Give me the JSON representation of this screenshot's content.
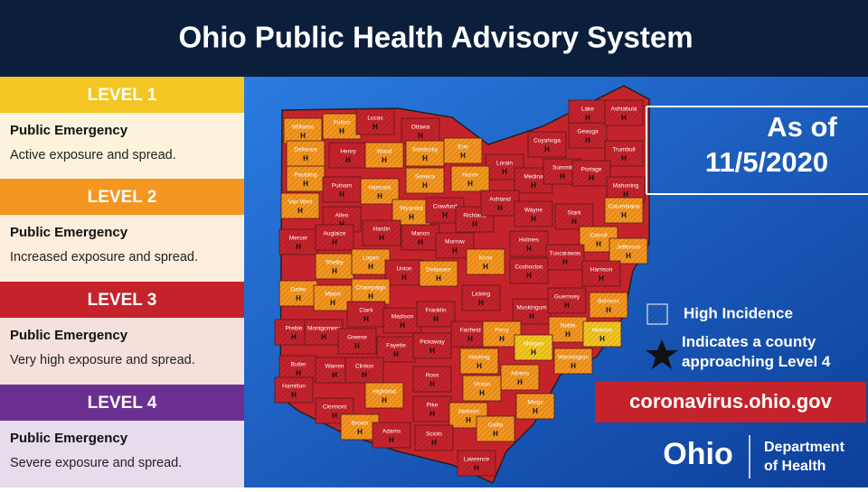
{
  "header": {
    "title": "Ohio Public Health Advisory System"
  },
  "levels": [
    {
      "label": "LEVEL 1",
      "title": "Public Emergency",
      "description": "Active exposure and spread.",
      "color": "#f3c623",
      "tint": "#fdf3dc"
    },
    {
      "label": "LEVEL 2",
      "title": "Public Emergency",
      "description": "Increased exposure and spread.",
      "color": "#f4961f",
      "tint": "#fdeedd"
    },
    {
      "label": "LEVEL 3",
      "title": "Public Emergency",
      "description": "Very high exposure and spread.",
      "color": "#c4232c",
      "tint": "#f6e0dc"
    },
    {
      "label": "LEVEL 4",
      "title": "Public Emergency",
      "description": "Severe exposure and spread.",
      "color": "#6b2f91",
      "tint": "#e6dcec"
    }
  ],
  "as_of": "As of",
  "date": "11/5/2020",
  "legend": {
    "high_incidence": "High Incidence",
    "star": "Indicates a county approaching Level 4"
  },
  "website": "coronavirus.ohio.gov",
  "logo": {
    "name": "Ohio",
    "department": [
      "Department",
      "of Health"
    ]
  },
  "marker": "H",
  "counties": [
    {
      "name": "Williams",
      "level": 2
    },
    {
      "name": "Fulton",
      "level": 2
    },
    {
      "name": "Lucas",
      "level": 3
    },
    {
      "name": "Ottawa",
      "level": 3
    },
    {
      "name": "Sandusky",
      "level": 2
    },
    {
      "name": "Erie",
      "level": 2
    },
    {
      "name": "Lorain",
      "level": 3
    },
    {
      "name": "Cuyahoga",
      "level": 3
    },
    {
      "name": "Lake",
      "level": 3
    },
    {
      "name": "Geauga",
      "level": 3
    },
    {
      "name": "Ashtabula",
      "level": 3
    },
    {
      "name": "Trumbull",
      "level": 3
    },
    {
      "name": "Defiance",
      "level": 2
    },
    {
      "name": "Henry",
      "level": 3
    },
    {
      "name": "Wood",
      "level": 2
    },
    {
      "name": "Seneca",
      "level": 2
    },
    {
      "name": "Huron",
      "level": 2
    },
    {
      "name": "Medina",
      "level": 3
    },
    {
      "name": "Summit",
      "level": 3
    },
    {
      "name": "Portage",
      "level": 3
    },
    {
      "name": "Mahoning",
      "level": 3
    },
    {
      "name": "Paulding",
      "level": 2
    },
    {
      "name": "Putnam",
      "level": 3
    },
    {
      "name": "Hancock",
      "level": 2
    },
    {
      "name": "Wyandot",
      "level": 2
    },
    {
      "name": "Crawford",
      "level": 3
    },
    {
      "name": "Richland",
      "level": 3
    },
    {
      "name": "Ashland",
      "level": 3
    },
    {
      "name": "Wayne",
      "level": 3
    },
    {
      "name": "Stark",
      "level": 3
    },
    {
      "name": "Columbiana",
      "level": 2
    },
    {
      "name": "Van Wert",
      "level": 2
    },
    {
      "name": "Allen",
      "level": 3
    },
    {
      "name": "Hardin",
      "level": 3
    },
    {
      "name": "Marion",
      "level": 3
    },
    {
      "name": "Morrow",
      "level": 3
    },
    {
      "name": "Holmes",
      "level": 3
    },
    {
      "name": "Carroll",
      "level": 2
    },
    {
      "name": "Tuscarawas",
      "level": 3
    },
    {
      "name": "Jefferson",
      "level": 2
    },
    {
      "name": "Mercer",
      "level": 3
    },
    {
      "name": "Auglaize",
      "level": 3
    },
    {
      "name": "Shelby",
      "level": 2
    },
    {
      "name": "Logan",
      "level": 2
    },
    {
      "name": "Union",
      "level": 3
    },
    {
      "name": "Delaware",
      "level": 2
    },
    {
      "name": "Knox",
      "level": 2
    },
    {
      "name": "Coshocton",
      "level": 3
    },
    {
      "name": "Harrison",
      "level": 3
    },
    {
      "name": "Darke",
      "level": 2
    },
    {
      "name": "Miami",
      "level": 2
    },
    {
      "name": "Champaign",
      "level": 2
    },
    {
      "name": "Licking",
      "level": 3
    },
    {
      "name": "Muskingum",
      "level": 3
    },
    {
      "name": "Guernsey",
      "level": 3
    },
    {
      "name": "Belmont",
      "level": 2
    },
    {
      "name": "Preble",
      "level": 3
    },
    {
      "name": "Montgomery",
      "level": 3
    },
    {
      "name": "Clark",
      "level": 3
    },
    {
      "name": "Madison",
      "level": 3
    },
    {
      "name": "Franklin",
      "level": 3
    },
    {
      "name": "Fairfield",
      "level": 3
    },
    {
      "name": "Perry",
      "level": 2
    },
    {
      "name": "Noble",
      "level": 2
    },
    {
      "name": "Monroe",
      "level": 1
    },
    {
      "name": "Morgan",
      "level": 1
    },
    {
      "name": "Greene",
      "level": 3
    },
    {
      "name": "Fayette",
      "level": 3
    },
    {
      "name": "Pickaway",
      "level": 3
    },
    {
      "name": "Hocking",
      "level": 2
    },
    {
      "name": "Washington",
      "level": 2
    },
    {
      "name": "Athens",
      "level": 2
    },
    {
      "name": "Butler",
      "level": 3
    },
    {
      "name": "Warren",
      "level": 3
    },
    {
      "name": "Clinton",
      "level": 3
    },
    {
      "name": "Ross",
      "level": 3
    },
    {
      "name": "Vinton",
      "level": 2
    },
    {
      "name": "Meigs",
      "level": 2
    },
    {
      "name": "Hamilton",
      "level": 3
    },
    {
      "name": "Clermont",
      "level": 3
    },
    {
      "name": "Highland",
      "level": 2
    },
    {
      "name": "Pike",
      "level": 3
    },
    {
      "name": "Jackson",
      "level": 2
    },
    {
      "name": "Gallia",
      "level": 2
    },
    {
      "name": "Brown",
      "level": 2
    },
    {
      "name": "Adams",
      "level": 3
    },
    {
      "name": "Scioto",
      "level": 3
    },
    {
      "name": "Lawrence",
      "level": 3
    }
  ]
}
